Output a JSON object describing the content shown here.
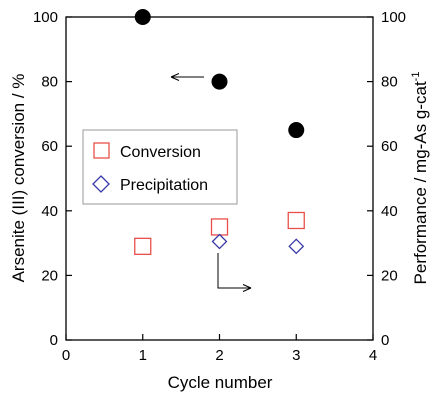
{
  "chart_data": {
    "type": "scatter",
    "xlabel": "Cycle number",
    "ylabel_left": "Arsenite (III) conversion / %",
    "ylabel_right_main": "Performance / mg-As g-cat",
    "ylabel_right_sup": "-1",
    "xlim": [
      0,
      4
    ],
    "ylim_left": [
      0,
      100
    ],
    "ylim_right": [
      0,
      100
    ],
    "x_ticks": [
      "0",
      "1",
      "2",
      "3",
      "4"
    ],
    "y_ticks_left": [
      "0",
      "20",
      "40",
      "60",
      "80",
      "100"
    ],
    "y_ticks_right": [
      "0",
      "20",
      "40",
      "60",
      "80",
      "100"
    ],
    "series": [
      {
        "name": "",
        "marker": "filled-circle",
        "color": "#000000",
        "axis": "left",
        "x": [
          1,
          2,
          3
        ],
        "y": [
          100,
          80,
          65
        ]
      },
      {
        "name": "Conversion",
        "marker": "open-square",
        "color": "#e8504a",
        "axis": "right",
        "x": [
          1,
          2,
          3
        ],
        "y": [
          29,
          35,
          37
        ]
      },
      {
        "name": "Precipitation",
        "marker": "open-diamond",
        "color": "#3a3aa8",
        "axis": "right",
        "x": [
          2,
          3
        ],
        "y": [
          30.5,
          29
        ]
      }
    ],
    "legend": {
      "placement": "center-left",
      "entries": [
        "Conversion",
        "Precipitation"
      ]
    },
    "annotations": [
      {
        "type": "arrow-left",
        "meaning": "filled circles refer to left axis"
      },
      {
        "type": "arrow-right",
        "meaning": "open markers refer to right axis"
      }
    ],
    "grid": false
  }
}
